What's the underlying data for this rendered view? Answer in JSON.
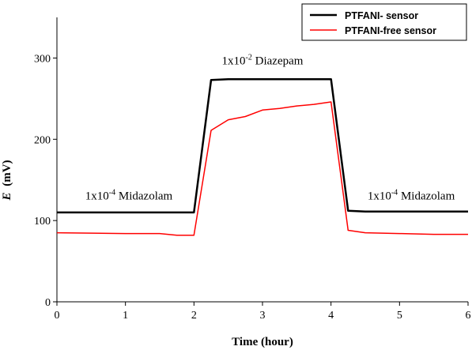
{
  "chart_data": {
    "type": "line",
    "xlabel": "Time (hour)",
    "ylabel": {
      "symbol": "E",
      "unit": "(mV)"
    },
    "xlim": [
      0,
      6
    ],
    "ylim": [
      0,
      350
    ],
    "xticks": [
      0,
      1,
      2,
      3,
      4,
      5,
      6
    ],
    "yticks": [
      0,
      100,
      200,
      300
    ],
    "grid": false,
    "legend_position": "top-right",
    "series": [
      {
        "name": "PTFANI- sensor",
        "color": "#000000",
        "x": [
          0,
          1.0,
          1.5,
          2.0,
          2.25,
          2.5,
          3.0,
          3.5,
          4.0,
          4.25,
          4.5,
          5.0,
          5.5,
          6.0
        ],
        "y": [
          110,
          110,
          110,
          110,
          273,
          274,
          274,
          274,
          274,
          112,
          111,
          111,
          111,
          111
        ]
      },
      {
        "name": "PTFANI-free sensor",
        "color": "#ff0000",
        "x": [
          0,
          1.0,
          1.5,
          1.75,
          2.0,
          2.25,
          2.5,
          2.75,
          3.0,
          3.25,
          3.5,
          3.75,
          4.0,
          4.25,
          4.5,
          5.0,
          5.5,
          6.0
        ],
        "y": [
          85,
          84,
          84,
          82,
          82,
          211,
          224,
          228,
          236,
          238,
          241,
          243,
          246,
          88,
          85,
          84,
          83,
          83
        ]
      }
    ],
    "annotations": [
      {
        "prefix": "1x10",
        "sup": "-4",
        "suffix": " Midazolam",
        "x": 1.05,
        "y": 126
      },
      {
        "prefix": "1x10",
        "sup": "-2",
        "suffix": " Diazepam",
        "x": 3.0,
        "y": 292
      },
      {
        "prefix": "1x10",
        "sup": "-4",
        "suffix": " Midazolam",
        "x": 5.17,
        "y": 126
      }
    ]
  }
}
